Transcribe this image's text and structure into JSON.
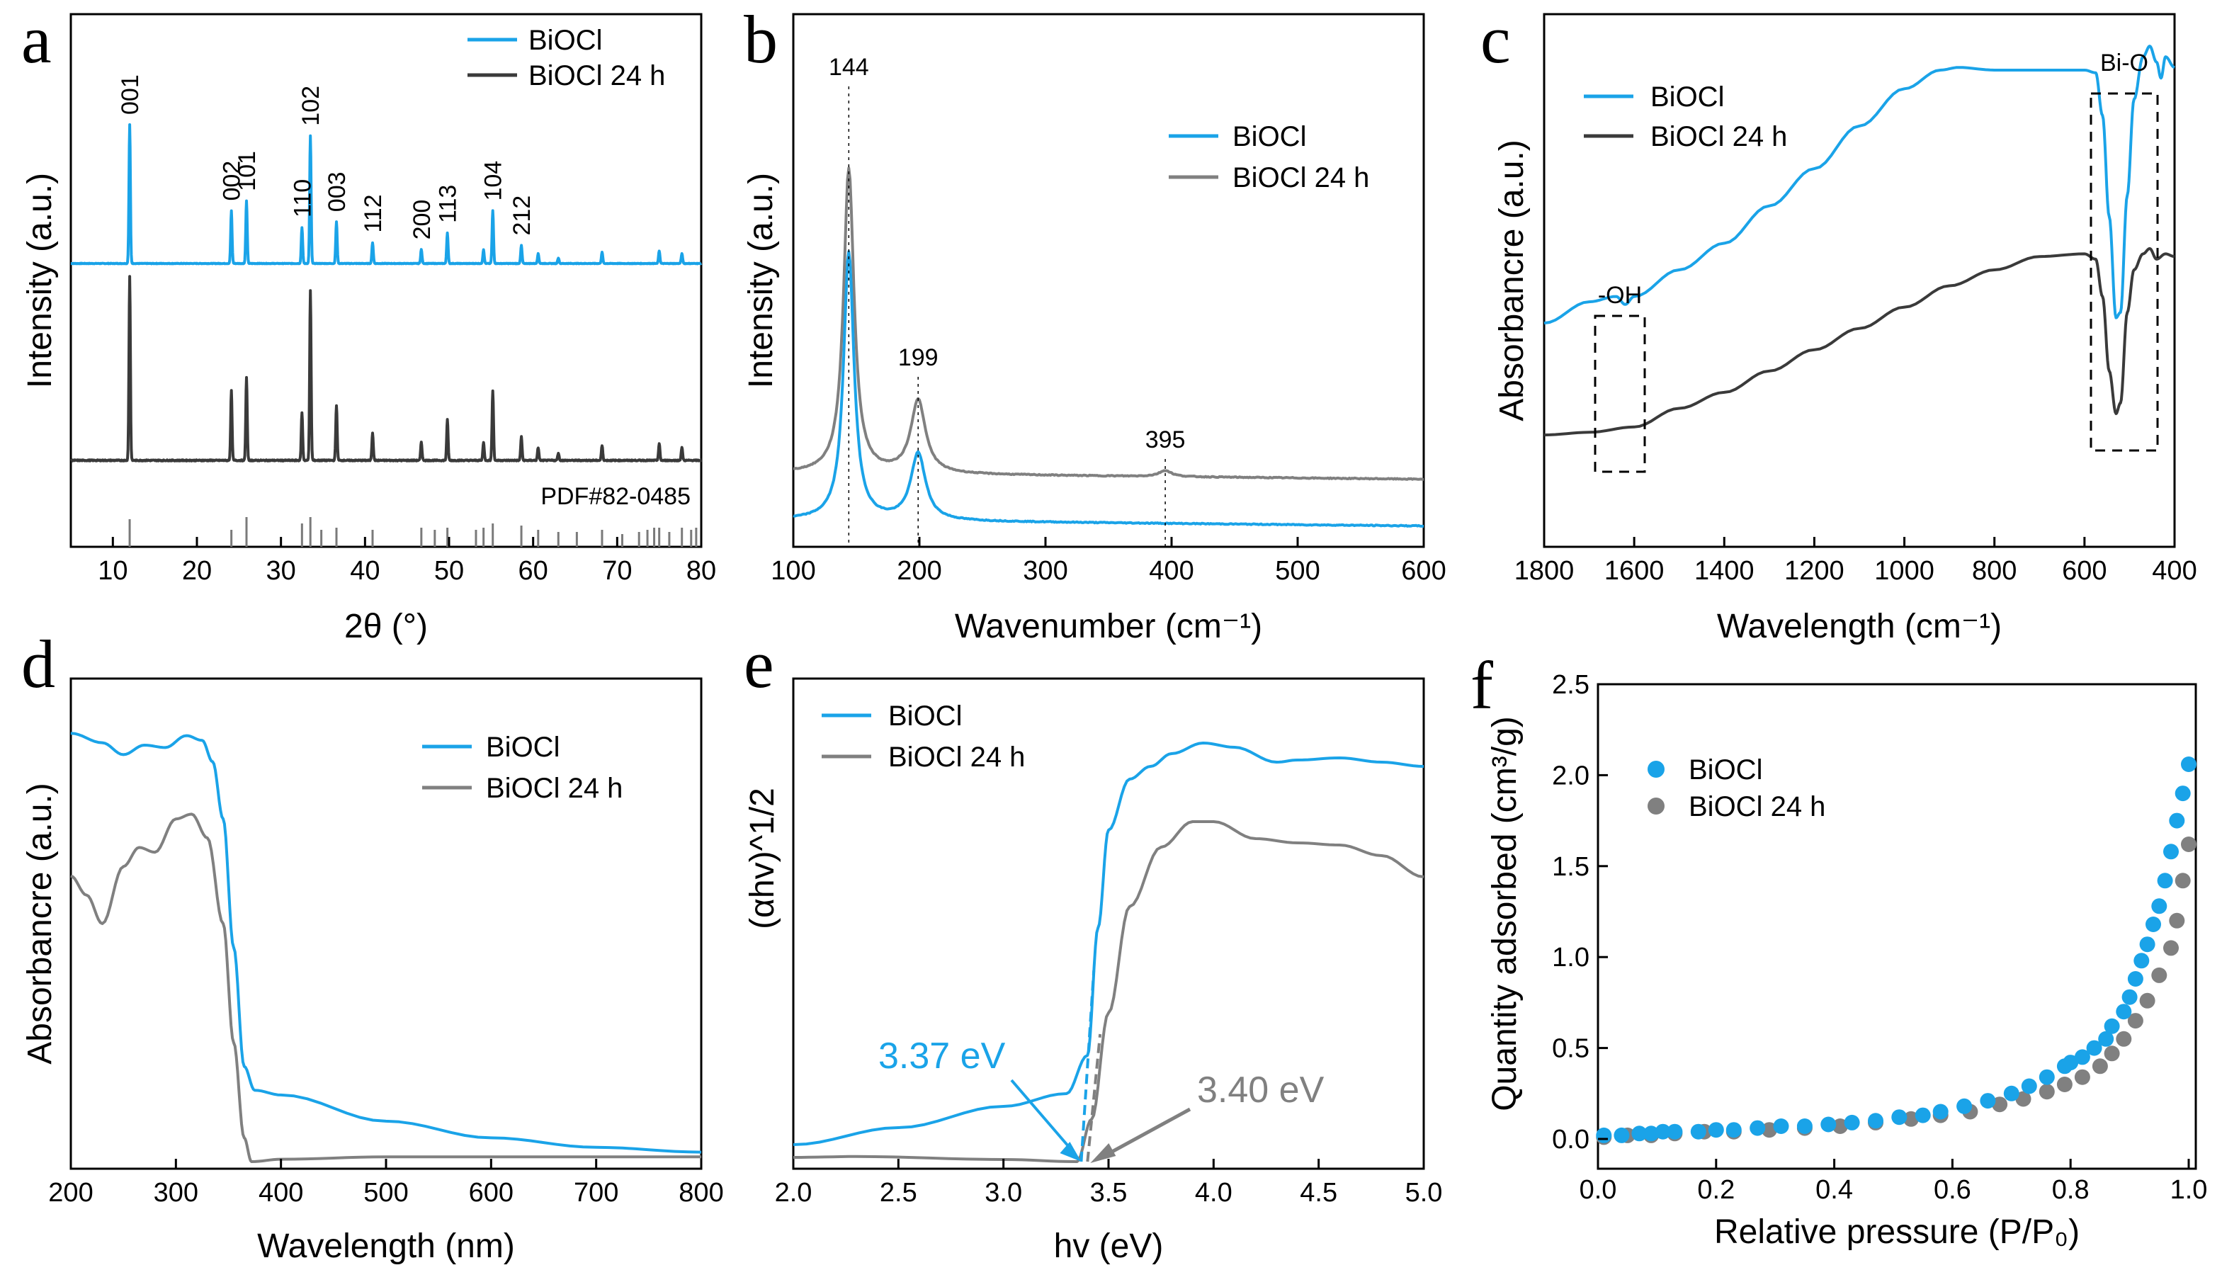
{
  "colors": {
    "blue": "#1aa3e8",
    "dark": "#3a3a3a",
    "gray": "#808080",
    "ref": "#7a7a7a"
  },
  "chart_data": [
    {
      "panel": "a",
      "type": "line",
      "title": "",
      "xlabel": "2θ (°)",
      "ylabel": "Intensity (a.u.)",
      "xlim": [
        5,
        80
      ],
      "xticks": [
        10,
        20,
        30,
        40,
        50,
        60,
        70,
        80
      ],
      "legend": [
        {
          "name": "BiOCl",
          "color": "#1aa3e8"
        },
        {
          "name": "BiOCl 24 h",
          "color": "#3a3a3a"
        }
      ],
      "peaks": [
        {
          "x": 12.0,
          "hkl": "001",
          "h": 1.0
        },
        {
          "x": 24.1,
          "hkl": "002",
          "h": 0.38
        },
        {
          "x": 25.9,
          "hkl": "101",
          "h": 0.45
        },
        {
          "x": 32.5,
          "hkl": "110",
          "h": 0.26
        },
        {
          "x": 33.5,
          "hkl": "102",
          "h": 0.92
        },
        {
          "x": 36.6,
          "hkl": "003",
          "h": 0.3
        },
        {
          "x": 40.9,
          "hkl": "112",
          "h": 0.15
        },
        {
          "x": 46.7,
          "hkl": "200",
          "h": 0.1
        },
        {
          "x": 49.8,
          "hkl": "113",
          "h": 0.22
        },
        {
          "x": 54.1,
          "hkl": "",
          "h": 0.1
        },
        {
          "x": 55.2,
          "hkl": "104",
          "h": 0.38
        },
        {
          "x": 58.6,
          "hkl": "212",
          "h": 0.13
        },
        {
          "x": 60.6,
          "hkl": "",
          "h": 0.07
        },
        {
          "x": 63.0,
          "hkl": "",
          "h": 0.04
        },
        {
          "x": 68.2,
          "hkl": "",
          "h": 0.08
        },
        {
          "x": 75.0,
          "hkl": "",
          "h": 0.09
        },
        {
          "x": 77.7,
          "hkl": "",
          "h": 0.07
        }
      ],
      "reference": {
        "label": "PDF#82-0485",
        "lines": [
          {
            "x": 12.0,
            "h": 0.65
          },
          {
            "x": 24.1,
            "h": 0.4
          },
          {
            "x": 25.9,
            "h": 0.7
          },
          {
            "x": 32.5,
            "h": 0.55
          },
          {
            "x": 33.5,
            "h": 0.7
          },
          {
            "x": 34.8,
            "h": 0.4
          },
          {
            "x": 36.6,
            "h": 0.45
          },
          {
            "x": 40.9,
            "h": 0.4
          },
          {
            "x": 46.7,
            "h": 0.45
          },
          {
            "x": 48.3,
            "h": 0.4
          },
          {
            "x": 49.8,
            "h": 0.45
          },
          {
            "x": 53.2,
            "h": 0.4
          },
          {
            "x": 54.1,
            "h": 0.45
          },
          {
            "x": 55.2,
            "h": 0.55
          },
          {
            "x": 58.6,
            "h": 0.5
          },
          {
            "x": 60.6,
            "h": 0.4
          },
          {
            "x": 63.0,
            "h": 0.35
          },
          {
            "x": 65.2,
            "h": 0.35
          },
          {
            "x": 68.2,
            "h": 0.4
          },
          {
            "x": 70.6,
            "h": 0.3
          },
          {
            "x": 72.6,
            "h": 0.35
          },
          {
            "x": 73.6,
            "h": 0.4
          },
          {
            "x": 74.4,
            "h": 0.45
          },
          {
            "x": 75.0,
            "h": 0.45
          },
          {
            "x": 76.2,
            "h": 0.35
          },
          {
            "x": 77.7,
            "h": 0.45
          },
          {
            "x": 78.8,
            "h": 0.4
          },
          {
            "x": 79.4,
            "h": 0.45
          }
        ]
      }
    },
    {
      "panel": "b",
      "type": "line",
      "title": "",
      "xlabel": "Wavenumber (cm⁻¹)",
      "ylabel": "Intensity (a.u.)",
      "xlim": [
        100,
        600
      ],
      "xticks": [
        100,
        200,
        300,
        400,
        500,
        600
      ],
      "legend": [
        {
          "name": "BiOCl",
          "color": "#1aa3e8"
        },
        {
          "name": "BiOCl 24 h",
          "color": "#808080"
        }
      ],
      "peak_labels": [
        "144",
        "199",
        "395"
      ],
      "peaks": [
        {
          "x": 144,
          "blue": 0.88,
          "gray": 1.0
        },
        {
          "x": 199,
          "blue": 0.22,
          "gray": 0.24
        },
        {
          "x": 395,
          "blue": 0.0,
          "gray": 0.02
        }
      ]
    },
    {
      "panel": "c",
      "type": "line",
      "title": "",
      "xlabel": "Wavelength (cm⁻¹)",
      "ylabel": "Absorbancre (a.u.)",
      "xlim": [
        1800,
        400
      ],
      "xticks": [
        1800,
        1600,
        1400,
        1200,
        1000,
        800,
        600,
        400
      ],
      "legend": [
        {
          "name": "BiOCl",
          "color": "#1aa3e8"
        },
        {
          "name": "BiOCl 24 h",
          "color": "#3a3a3a"
        }
      ],
      "annotations": [
        "-OH",
        "Bi-O"
      ],
      "series": [
        {
          "name": "BiOCl",
          "points": [
            [
              1800,
              0.42
            ],
            [
              1700,
              0.46
            ],
            [
              1640,
              0.47
            ],
            [
              1620,
              0.455
            ],
            [
              1600,
              0.47
            ],
            [
              1500,
              0.52
            ],
            [
              1400,
              0.57
            ],
            [
              1300,
              0.64
            ],
            [
              1200,
              0.71
            ],
            [
              1100,
              0.79
            ],
            [
              1000,
              0.86
            ],
            [
              920,
              0.895
            ],
            [
              880,
              0.9
            ],
            [
              800,
              0.895
            ],
            [
              700,
              0.895
            ],
            [
              600,
              0.895
            ],
            [
              575,
              0.89
            ],
            [
              560,
              0.81
            ],
            [
              545,
              0.62
            ],
            [
              530,
              0.43
            ],
            [
              520,
              0.44
            ],
            [
              505,
              0.66
            ],
            [
              490,
              0.84
            ],
            [
              470,
              0.92
            ],
            [
              455,
              0.94
            ],
            [
              440,
              0.91
            ],
            [
              430,
              0.88
            ],
            [
              420,
              0.92
            ],
            [
              400,
              0.9
            ]
          ]
        },
        {
          "name": "BiOCl 24 h",
          "points": [
            [
              1800,
              0.21
            ],
            [
              1700,
              0.215
            ],
            [
              1600,
              0.225
            ],
            [
              1500,
              0.26
            ],
            [
              1400,
              0.29
            ],
            [
              1300,
              0.33
            ],
            [
              1200,
              0.37
            ],
            [
              1100,
              0.41
            ],
            [
              1000,
              0.45
            ],
            [
              900,
              0.49
            ],
            [
              800,
              0.52
            ],
            [
              700,
              0.545
            ],
            [
              600,
              0.55
            ],
            [
              575,
              0.54
            ],
            [
              560,
              0.47
            ],
            [
              545,
              0.33
            ],
            [
              530,
              0.25
            ],
            [
              520,
              0.27
            ],
            [
              505,
              0.44
            ],
            [
              490,
              0.52
            ],
            [
              470,
              0.55
            ],
            [
              455,
              0.56
            ],
            [
              440,
              0.54
            ],
            [
              420,
              0.55
            ],
            [
              400,
              0.545
            ]
          ]
        }
      ]
    },
    {
      "panel": "d",
      "type": "line",
      "title": "",
      "xlabel": "Wavelength (nm)",
      "ylabel": "Absorbancre (a.u.)",
      "xlim": [
        200,
        800
      ],
      "xticks": [
        200,
        300,
        400,
        500,
        600,
        700,
        800
      ],
      "legend": [
        {
          "name": "BiOCl",
          "color": "#1aa3e8"
        },
        {
          "name": "BiOCl 24 h",
          "color": "#808080"
        }
      ],
      "series": [
        {
          "name": "BiOCl",
          "points": [
            [
              200,
              0.9
            ],
            [
              230,
              0.88
            ],
            [
              250,
              0.855
            ],
            [
              270,
              0.875
            ],
            [
              290,
              0.87
            ],
            [
              310,
              0.895
            ],
            [
              325,
              0.885
            ],
            [
              335,
              0.84
            ],
            [
              345,
              0.72
            ],
            [
              355,
              0.45
            ],
            [
              365,
              0.2
            ],
            [
              375,
              0.15
            ],
            [
              400,
              0.14
            ],
            [
              500,
              0.085
            ],
            [
              600,
              0.05
            ],
            [
              700,
              0.03
            ],
            [
              800,
              0.02
            ]
          ]
        },
        {
          "name": "BiOCl 24 h",
          "points": [
            [
              200,
              0.6
            ],
            [
              215,
              0.56
            ],
            [
              230,
              0.5
            ],
            [
              250,
              0.62
            ],
            [
              265,
              0.66
            ],
            [
              280,
              0.65
            ],
            [
              300,
              0.72
            ],
            [
              315,
              0.73
            ],
            [
              330,
              0.68
            ],
            [
              345,
              0.5
            ],
            [
              355,
              0.25
            ],
            [
              365,
              0.05
            ],
            [
              372,
              0.0
            ],
            [
              400,
              0.005
            ],
            [
              500,
              0.01
            ],
            [
              600,
              0.01
            ],
            [
              700,
              0.01
            ],
            [
              800,
              0.01
            ]
          ]
        }
      ]
    },
    {
      "panel": "e",
      "type": "line",
      "title": "",
      "xlabel": "hv (eV)",
      "ylabel": "(αhv)^1/2",
      "xlim": [
        2.0,
        5.0
      ],
      "xticks": [
        2.0,
        2.5,
        3.0,
        3.5,
        4.0,
        4.5,
        5.0
      ],
      "legend": [
        {
          "name": "BiOCl",
          "color": "#1aa3e8"
        },
        {
          "name": "BiOCl 24 h",
          "color": "#808080"
        }
      ],
      "band_gaps": [
        {
          "name": "BiOCl",
          "value": 3.37,
          "label": "3.37 eV"
        },
        {
          "name": "BiOCl 24 h",
          "value": 3.4,
          "label": "3.40 eV"
        }
      ],
      "series": [
        {
          "name": "BiOCl",
          "points": [
            [
              2.0,
              0.04
            ],
            [
              2.5,
              0.08
            ],
            [
              3.0,
              0.13
            ],
            [
              3.3,
              0.16
            ],
            [
              3.4,
              0.25
            ],
            [
              3.45,
              0.55
            ],
            [
              3.5,
              0.78
            ],
            [
              3.6,
              0.9
            ],
            [
              3.7,
              0.93
            ],
            [
              3.8,
              0.96
            ],
            [
              3.95,
              0.985
            ],
            [
              4.1,
              0.975
            ],
            [
              4.3,
              0.94
            ],
            [
              4.4,
              0.945
            ],
            [
              4.6,
              0.95
            ],
            [
              4.8,
              0.94
            ],
            [
              5.0,
              0.93
            ]
          ]
        },
        {
          "name": "BiOCl 24 h",
          "points": [
            [
              2.0,
              0.01
            ],
            [
              2.3,
              0.012
            ],
            [
              3.0,
              0.005
            ],
            [
              3.35,
              0.0
            ],
            [
              3.42,
              0.1
            ],
            [
              3.5,
              0.35
            ],
            [
              3.6,
              0.6
            ],
            [
              3.75,
              0.74
            ],
            [
              3.9,
              0.8
            ],
            [
              4.0,
              0.8
            ],
            [
              4.2,
              0.76
            ],
            [
              4.4,
              0.75
            ],
            [
              4.6,
              0.745
            ],
            [
              4.8,
              0.72
            ],
            [
              5.0,
              0.67
            ]
          ]
        }
      ]
    },
    {
      "panel": "f",
      "type": "scatter",
      "title": "",
      "xlabel": "Relative pressure (P/P₀)",
      "ylabel": "Quantity adsorbed (cm³/g)",
      "xlim": [
        0.0,
        1.0
      ],
      "ylim": [
        -0.1,
        2.5
      ],
      "xticks": [
        0.0,
        0.2,
        0.4,
        0.6,
        0.8,
        1.0
      ],
      "yticks": [
        0.0,
        0.5,
        1.0,
        1.5,
        2.0,
        2.5
      ],
      "legend": [
        {
          "name": "BiOCl",
          "color": "#1aa3e8"
        },
        {
          "name": "BiOCl 24 h",
          "color": "#808080"
        }
      ],
      "series": [
        {
          "name": "BiOCl",
          "x": [
            0.01,
            0.04,
            0.07,
            0.09,
            0.11,
            0.13,
            0.17,
            0.2,
            0.23,
            0.27,
            0.31,
            0.35,
            0.39,
            0.43,
            0.47,
            0.51,
            0.55,
            0.58,
            0.62,
            0.66,
            0.7,
            0.73,
            0.76,
            0.79,
            0.8,
            0.82,
            0.84,
            0.86,
            0.87,
            0.89,
            0.9,
            0.91,
            0.92,
            0.93,
            0.94,
            0.95,
            0.96,
            0.97,
            0.98,
            0.99,
            1.0
          ],
          "y": [
            0.02,
            0.02,
            0.03,
            0.03,
            0.04,
            0.04,
            0.04,
            0.05,
            0.05,
            0.06,
            0.07,
            0.07,
            0.08,
            0.09,
            0.1,
            0.12,
            0.13,
            0.15,
            0.18,
            0.21,
            0.25,
            0.29,
            0.34,
            0.4,
            0.42,
            0.45,
            0.5,
            0.55,
            0.62,
            0.7,
            0.78,
            0.88,
            0.98,
            1.07,
            1.18,
            1.28,
            1.42,
            1.58,
            1.75,
            1.9,
            2.06
          ]
        },
        {
          "name": "BiOCl 24 h",
          "x": [
            0.01,
            0.05,
            0.09,
            0.13,
            0.18,
            0.23,
            0.29,
            0.35,
            0.41,
            0.47,
            0.53,
            0.58,
            0.63,
            0.68,
            0.72,
            0.76,
            0.79,
            0.82,
            0.85,
            0.87,
            0.89,
            0.91,
            0.93,
            0.95,
            0.97,
            0.98,
            0.99,
            1.0
          ],
          "y": [
            0.01,
            0.02,
            0.02,
            0.03,
            0.04,
            0.04,
            0.05,
            0.06,
            0.07,
            0.09,
            0.11,
            0.13,
            0.15,
            0.19,
            0.22,
            0.26,
            0.3,
            0.34,
            0.4,
            0.47,
            0.55,
            0.65,
            0.76,
            0.9,
            1.05,
            1.2,
            1.42,
            1.62
          ]
        }
      ]
    }
  ]
}
